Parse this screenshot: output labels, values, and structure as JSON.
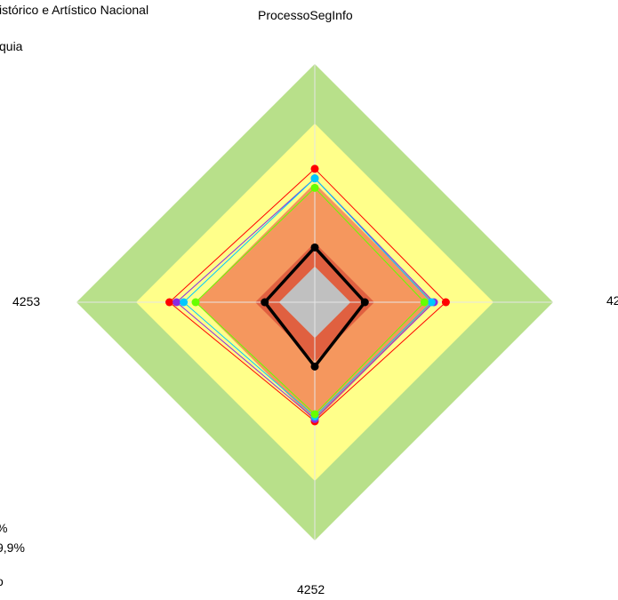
{
  "chart_data": {
    "type": "radar",
    "title": "ProcessoSegInfo",
    "header_fragments": [
      "istórico e Artístico Nacional",
      "quia"
    ],
    "legend_fragments": [
      "%",
      "9,9%",
      "o"
    ],
    "axes": [
      "4251",
      "4252",
      "4253",
      "4254"
    ],
    "rmax": 1.0,
    "bands": [
      {
        "r": 1.0,
        "color": "#b8e08a"
      },
      {
        "r": 0.75,
        "color": "#ffff8a"
      },
      {
        "r": 0.5,
        "color": "#f5975e"
      },
      {
        "r": 0.25,
        "color": "#e06040"
      },
      {
        "r": 0.15,
        "color": "#c0c0c0"
      }
    ],
    "series": [
      {
        "color": "#ff0000",
        "values": [
          0.55,
          0.5,
          0.61,
          0.56
        ],
        "stroke_width": 1,
        "markers": true
      },
      {
        "color": "#8a2be2",
        "values": [
          0.5,
          0.49,
          0.58,
          0.52
        ],
        "stroke_width": 1,
        "markers": true
      },
      {
        "color": "#00c8ff",
        "values": [
          0.49,
          0.48,
          0.55,
          0.52
        ],
        "stroke_width": 1,
        "markers": true
      },
      {
        "color": "#66ff00",
        "values": [
          0.46,
          0.47,
          0.5,
          0.48
        ],
        "stroke_width": 1,
        "markers": true
      },
      {
        "color": "#000000",
        "values": [
          0.21,
          0.27,
          0.21,
          0.23
        ],
        "stroke_width": 3.5,
        "markers": true
      }
    ]
  }
}
